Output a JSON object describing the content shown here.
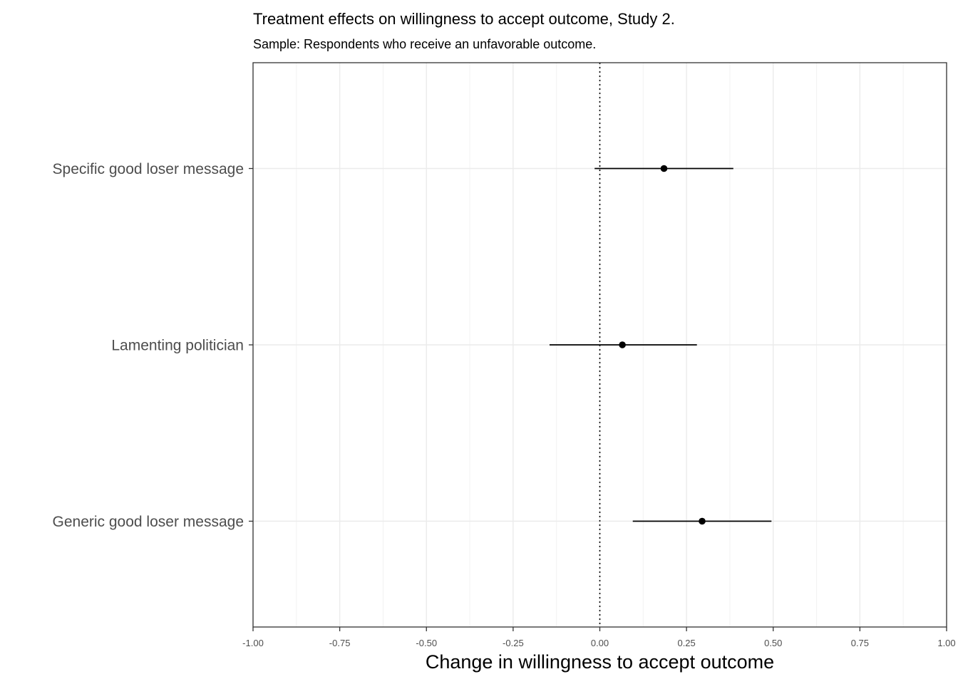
{
  "chart_data": {
    "type": "scatter",
    "title": "Treatment effects on willingness to accept outcome, Study 2.",
    "subtitle": "Sample: Respondents who receive an unfavorable outcome.",
    "xlabel": "Change in willingness to accept outcome",
    "ylabel": "",
    "xlim": [
      -1.0,
      1.0
    ],
    "x_ticks": [
      "-1.00",
      "-0.75",
      "-0.50",
      "-0.25",
      "0.00",
      "0.25",
      "0.50",
      "0.75",
      "1.00"
    ],
    "x_tick_values": [
      -1.0,
      -0.75,
      -0.5,
      -0.25,
      0.0,
      0.25,
      0.5,
      0.75,
      1.0
    ],
    "reference_line": {
      "x": 0.0,
      "style": "dotted"
    },
    "grid": true,
    "series": [
      {
        "label": "Specific good loser message",
        "estimate": 0.185,
        "ci_low": -0.015,
        "ci_high": 0.385
      },
      {
        "label": "Lamenting politician",
        "estimate": 0.065,
        "ci_low": -0.145,
        "ci_high": 0.28
      },
      {
        "label": "Generic good loser message",
        "estimate": 0.295,
        "ci_low": 0.095,
        "ci_high": 0.495
      }
    ]
  }
}
